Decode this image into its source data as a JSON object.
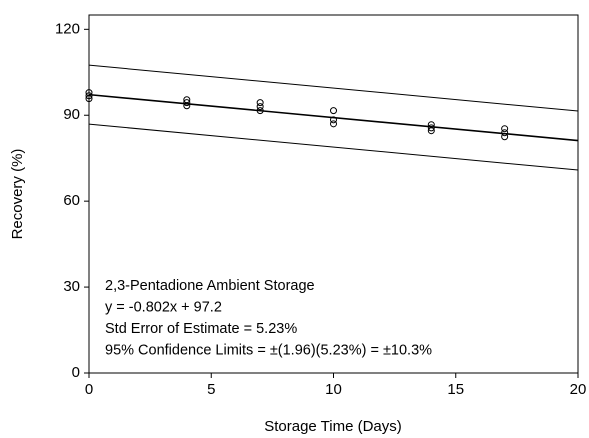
{
  "chart_data": {
    "type": "scatter",
    "x_label": "Storage Time (Days)",
    "y_label": "Recovery (%)",
    "xlim": [
      0,
      20
    ],
    "xticks": [
      0,
      5,
      10,
      15,
      20
    ],
    "ylim": [
      0,
      125
    ],
    "yticks": [
      0,
      30,
      60,
      90,
      120
    ],
    "color": "#000000",
    "points": {
      "x": [
        0,
        0,
        0,
        4,
        4,
        4,
        7,
        7,
        7,
        10,
        10,
        10,
        14,
        14,
        14,
        17,
        17,
        17
      ],
      "values": [
        97.9,
        96.8,
        95.8,
        95.4,
        94.4,
        93.3,
        94.4,
        93.0,
        91.6,
        91.6,
        88.4,
        87.0,
        86.7,
        85.6,
        84.6,
        85.3,
        83.9,
        82.5
      ]
    },
    "lines": [
      {
        "x": [
          0,
          20
        ],
        "values": [
          107.5,
          91.46
        ]
      },
      {
        "x": [
          0,
          20
        ],
        "values": [
          97.2,
          81.16
        ]
      },
      {
        "x": [
          0,
          20
        ],
        "values": [
          86.9,
          70.86
        ]
      }
    ],
    "annotation": [
      "2,3-Pentadione Ambient Storage",
      "y = -0.802x + 97.2",
      "Std Error of Estimate = 5.23%",
      "95% Confidence Limits = ±(1.96)(5.23%) = ±10.3%"
    ]
  }
}
